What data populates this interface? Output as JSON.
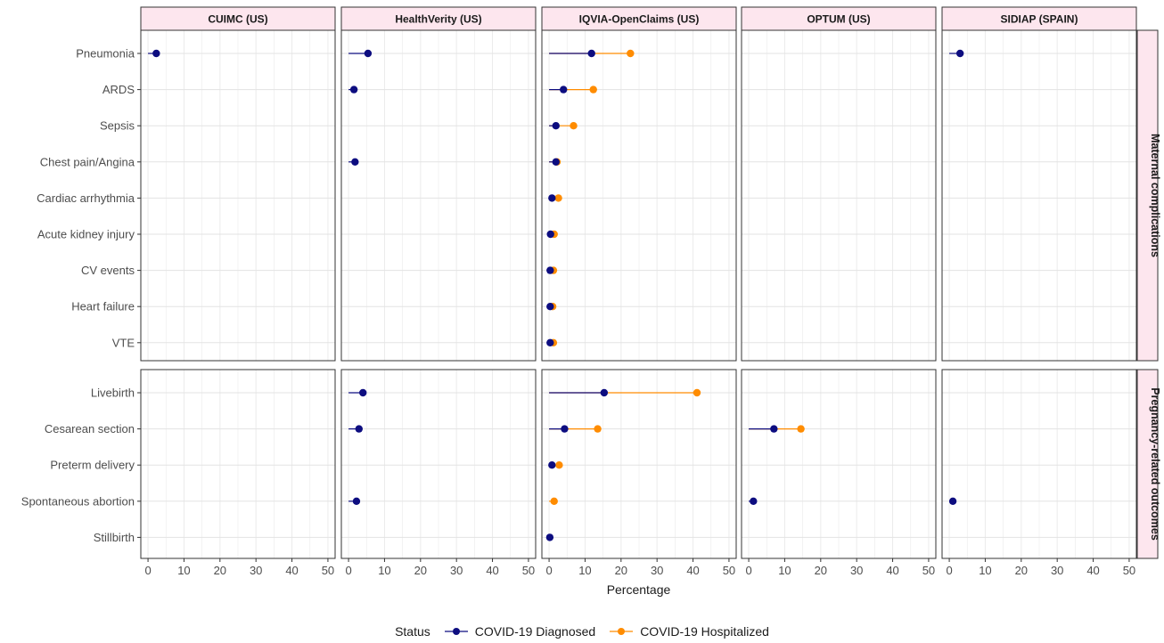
{
  "chart_data": {
    "type": "scatter",
    "xlabel": "Percentage",
    "xlim": [
      -2,
      52
    ],
    "xticks": [
      0,
      10,
      20,
      30,
      40,
      50
    ],
    "grid": true,
    "databases": [
      "CUIMC (US)",
      "HealthVerity (US)",
      "IQVIA-OpenClaims (US)",
      "OPTUM (US)",
      "SIDIAP (SPAIN)"
    ],
    "groups": [
      {
        "label": "Maternal complications",
        "outcomes": [
          "Pneumonia",
          "ARDS",
          "Sepsis",
          "Chest pain/Angina",
          "Cardiac arrhythmia",
          "Acute kidney injury",
          "CV events",
          "Heart failure",
          "VTE"
        ]
      },
      {
        "label": "Pregnancy-related outcomes",
        "outcomes": [
          "Livebirth",
          "Cesarean section",
          "Preterm delivery",
          "Spontaneous abortion",
          "Stillbirth"
        ]
      }
    ],
    "series": [
      {
        "name": "COVID-19 Diagnosed",
        "color": "#0d0d80"
      },
      {
        "name": "COVID-19 Hospitalized",
        "color": "#ff8c00"
      }
    ],
    "legend": {
      "title": "Status",
      "position": "bottom"
    },
    "points": [
      {
        "db": "CUIMC (US)",
        "outcome": "Pneumonia",
        "diagnosed": 2.3,
        "hospitalized": null
      },
      {
        "db": "HealthVerity (US)",
        "outcome": "Pneumonia",
        "diagnosed": 5.4,
        "hospitalized": null
      },
      {
        "db": "HealthVerity (US)",
        "outcome": "ARDS",
        "diagnosed": 1.5,
        "hospitalized": null
      },
      {
        "db": "HealthVerity (US)",
        "outcome": "Chest pain/Angina",
        "diagnosed": 1.8,
        "hospitalized": null
      },
      {
        "db": "HealthVerity (US)",
        "outcome": "Livebirth",
        "diagnosed": 4.0,
        "hospitalized": null
      },
      {
        "db": "HealthVerity (US)",
        "outcome": "Cesarean section",
        "diagnosed": 2.9,
        "hospitalized": null
      },
      {
        "db": "HealthVerity (US)",
        "outcome": "Spontaneous abortion",
        "diagnosed": 2.2,
        "hospitalized": null
      },
      {
        "db": "IQVIA-OpenClaims (US)",
        "outcome": "Pneumonia",
        "diagnosed": 11.8,
        "hospitalized": 22.6
      },
      {
        "db": "IQVIA-OpenClaims (US)",
        "outcome": "ARDS",
        "diagnosed": 4.0,
        "hospitalized": 12.3
      },
      {
        "db": "IQVIA-OpenClaims (US)",
        "outcome": "Sepsis",
        "diagnosed": 1.9,
        "hospitalized": 6.8
      },
      {
        "db": "IQVIA-OpenClaims (US)",
        "outcome": "Chest pain/Angina",
        "diagnosed": 1.9,
        "hospitalized": 2.2
      },
      {
        "db": "IQVIA-OpenClaims (US)",
        "outcome": "Cardiac arrhythmia",
        "diagnosed": 0.8,
        "hospitalized": 2.6
      },
      {
        "db": "IQVIA-OpenClaims (US)",
        "outcome": "Acute kidney injury",
        "diagnosed": 0.4,
        "hospitalized": 1.4
      },
      {
        "db": "IQVIA-OpenClaims (US)",
        "outcome": "CV events",
        "diagnosed": 0.3,
        "hospitalized": 1.2
      },
      {
        "db": "IQVIA-OpenClaims (US)",
        "outcome": "Heart failure",
        "diagnosed": 0.3,
        "hospitalized": 1.0
      },
      {
        "db": "IQVIA-OpenClaims (US)",
        "outcome": "VTE",
        "diagnosed": 0.3,
        "hospitalized": 1.2
      },
      {
        "db": "IQVIA-OpenClaims (US)",
        "outcome": "Livebirth",
        "diagnosed": 15.3,
        "hospitalized": 41.1
      },
      {
        "db": "IQVIA-OpenClaims (US)",
        "outcome": "Cesarean section",
        "diagnosed": 4.3,
        "hospitalized": 13.5
      },
      {
        "db": "IQVIA-OpenClaims (US)",
        "outcome": "Preterm delivery",
        "diagnosed": 0.8,
        "hospitalized": 2.8
      },
      {
        "db": "IQVIA-OpenClaims (US)",
        "outcome": "Spontaneous abortion",
        "diagnosed": null,
        "hospitalized": 1.4
      },
      {
        "db": "IQVIA-OpenClaims (US)",
        "outcome": "Stillbirth",
        "diagnosed": 0.2,
        "hospitalized": null
      },
      {
        "db": "OPTUM (US)",
        "outcome": "Cesarean section",
        "diagnosed": 7.0,
        "hospitalized": 14.5
      },
      {
        "db": "OPTUM (US)",
        "outcome": "Spontaneous abortion",
        "diagnosed": 1.3,
        "hospitalized": null
      },
      {
        "db": "SIDIAP (SPAIN)",
        "outcome": "Pneumonia",
        "diagnosed": 3.0,
        "hospitalized": null
      },
      {
        "db": "SIDIAP (SPAIN)",
        "outcome": "Spontaneous abortion",
        "diagnosed": 1.0,
        "hospitalized": null
      }
    ]
  }
}
